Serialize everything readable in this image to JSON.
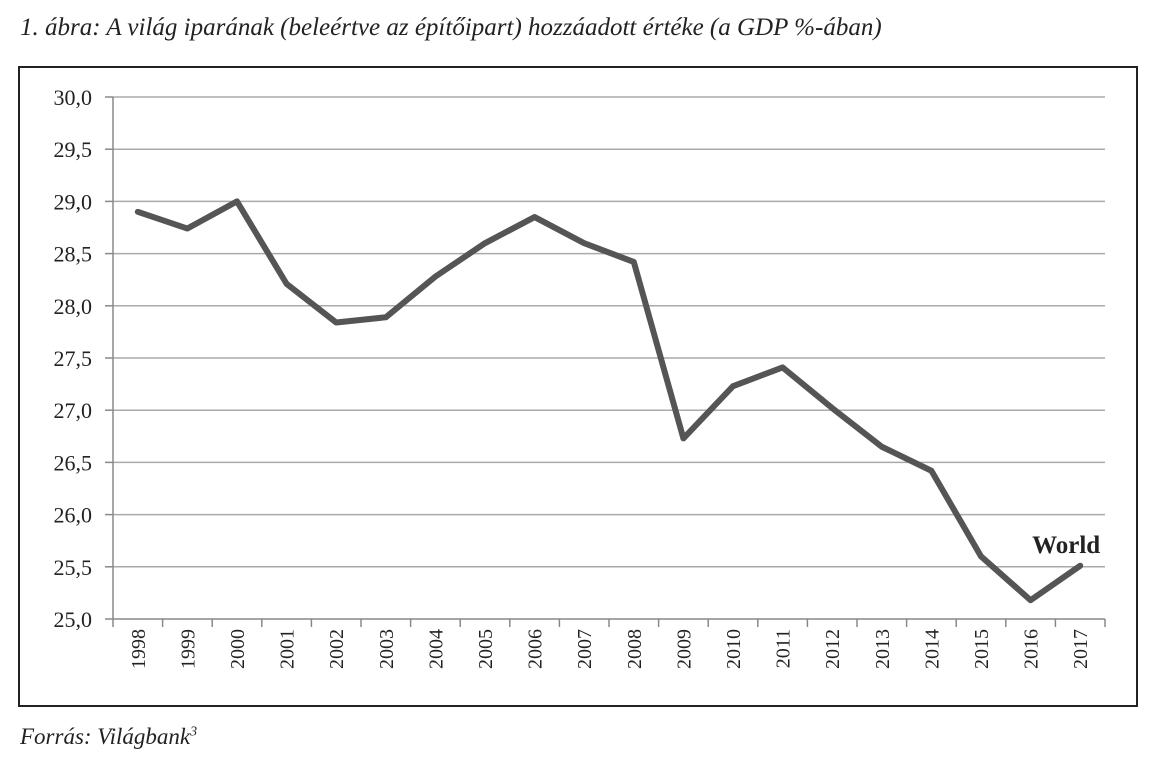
{
  "chart_data": {
    "type": "line",
    "title": "1. ábra: A világ iparának (beleértve az építőipart) hozzáadott értéke (a GDP %-ában)",
    "source": "Forrás: Világbank",
    "source_footnote": "3",
    "categories": [
      "1998",
      "1999",
      "2000",
      "2001",
      "2002",
      "2003",
      "2004",
      "2005",
      "2006",
      "2007",
      "2008",
      "2009",
      "2010",
      "2011",
      "2012",
      "2013",
      "2014",
      "2015",
      "2016",
      "2017"
    ],
    "series": [
      {
        "name": "World",
        "color": "#555555",
        "values": [
          28.9,
          28.74,
          29.0,
          28.21,
          27.84,
          27.89,
          28.28,
          28.6,
          28.85,
          28.6,
          28.42,
          26.73,
          27.23,
          27.41,
          27.02,
          26.65,
          26.42,
          25.6,
          25.18,
          25.51
        ]
      }
    ],
    "ylim": [
      25.0,
      30.0
    ],
    "yticks": [
      "25,0",
      "25,5",
      "26,0",
      "26,5",
      "27,0",
      "27,5",
      "28,0",
      "28,5",
      "29,0",
      "29,5",
      "30,0"
    ],
    "grid": true,
    "xlabel": "",
    "ylabel": ""
  }
}
